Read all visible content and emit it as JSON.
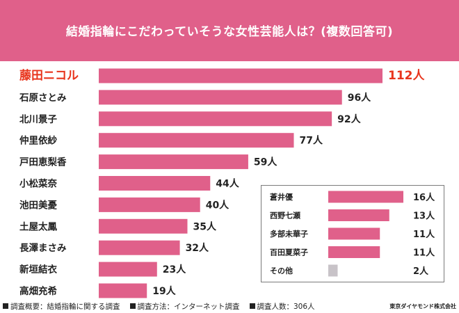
{
  "header": {
    "title": "結婚指輪にこだわっていそうな女性芸能人は？(複数回答可)"
  },
  "chart_data": [
    {
      "type": "bar",
      "orientation": "horizontal",
      "categories": [
        "藤田ニコル",
        "石原さとみ",
        "北川景子",
        "仲里依紗",
        "戸田恵梨香",
        "小松菜奈",
        "池田美憂",
        "土屋太鳳",
        "長澤まさみ",
        "新垣結衣",
        "高畑充希"
      ],
      "values": [
        112,
        96,
        92,
        77,
        59,
        44,
        40,
        35,
        32,
        23,
        19
      ],
      "value_labels": [
        "112人",
        "96人",
        "92人",
        "77人",
        "59人",
        "44人",
        "40人",
        "35人",
        "32人",
        "23人",
        "19人"
      ],
      "highlight_index": 0,
      "colors": {
        "bar": "#e0608a",
        "highlight_text": "#e8341c",
        "text": "#222222"
      },
      "grid": false,
      "legend": "none"
    },
    {
      "type": "bar",
      "orientation": "horizontal",
      "categories": [
        "蒼井優",
        "西野七瀬",
        "多部未華子",
        "百田夏菜子",
        "その他"
      ],
      "values": [
        16,
        13,
        11,
        11,
        2
      ],
      "value_labels": [
        "16人",
        "13人",
        "11人",
        "11人",
        "2人"
      ],
      "colors": {
        "bar": "#e0608a",
        "other_bar": "#c8c3c8",
        "text": "#222222"
      },
      "grid": false,
      "legend": "none"
    }
  ],
  "footer": {
    "notes": [
      "調査概要：結婚指輪に関する調査",
      "調査方法：インターネット調査",
      "調査人数：306人"
    ],
    "credit": "東京ダイヤモンド株式会社"
  }
}
